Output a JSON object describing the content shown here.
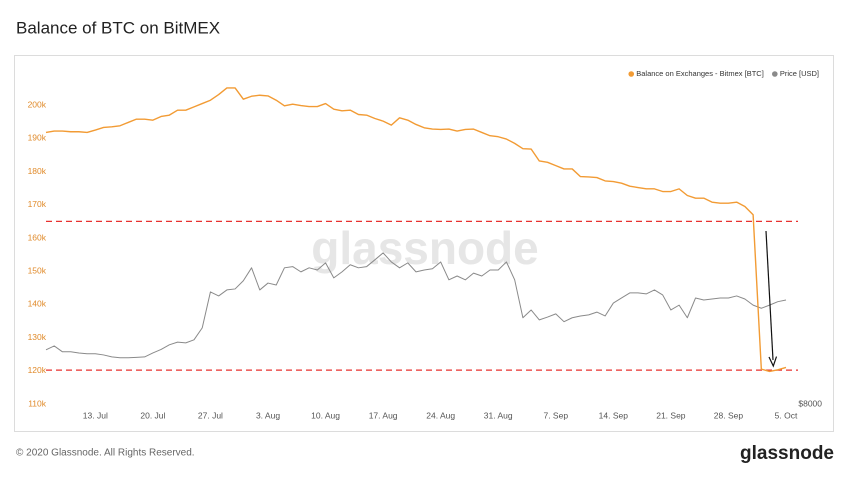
{
  "chart_data": {
    "type": "line",
    "title": "Balance of BTC on BitMEX",
    "watermark": "glassnode",
    "categories": [
      null,
      null,
      null,
      null,
      null,
      null,
      "13. Jul",
      null,
      null,
      null,
      null,
      null,
      null,
      "20. Jul",
      null,
      null,
      null,
      null,
      null,
      null,
      "27. Jul",
      null,
      null,
      null,
      null,
      null,
      null,
      "3. Aug",
      null,
      null,
      null,
      null,
      null,
      null,
      "10. Aug",
      null,
      null,
      null,
      null,
      null,
      null,
      "17. Aug",
      null,
      null,
      null,
      null,
      null,
      null,
      "24. Aug",
      null,
      null,
      null,
      null,
      null,
      null,
      "31. Aug",
      null,
      null,
      null,
      null,
      null,
      null,
      "7. Sep",
      null,
      null,
      null,
      null,
      null,
      null,
      "14. Sep",
      null,
      null,
      null,
      null,
      null,
      null,
      "21. Sep",
      null,
      null,
      null,
      null,
      null,
      null,
      "28. Sep",
      null,
      null,
      null,
      null,
      null,
      null,
      "5. Oct"
    ],
    "series": [
      {
        "name": "Balance on Exchanges - Bitmex [BTC]",
        "color": "#f29b34",
        "axis": "y",
        "values": [
          191800,
          192200,
          192200,
          192000,
          192000,
          191800,
          192500,
          193300,
          193500,
          193800,
          194800,
          195800,
          195800,
          195500,
          196600,
          197000,
          198500,
          198500,
          199500,
          200500,
          201500,
          203200,
          205200,
          205200,
          201800,
          202700,
          203000,
          202800,
          201500,
          199800,
          200300,
          199900,
          199600,
          199600,
          200500,
          198800,
          198300,
          198500,
          197200,
          197000,
          196000,
          195200,
          194000,
          196200,
          195500,
          194200,
          193200,
          192800,
          192700,
          192800,
          192200,
          192700,
          192800,
          191800,
          190800,
          190500,
          189800,
          188500,
          186900,
          186800,
          183200,
          182800,
          181800,
          180800,
          180800,
          178500,
          178400,
          178200,
          177200,
          177000,
          176500,
          175600,
          175200,
          174800,
          174800,
          174000,
          174000,
          174800,
          172800,
          172000,
          172000,
          170800,
          170500,
          170500,
          170800,
          169500,
          167000,
          120500,
          119800,
          120300,
          121000
        ]
      },
      {
        "name": "Price [USD]",
        "color": "#8a8a8a",
        "axis": "y2",
        "values": [
          9290,
          9390,
          9240,
          9240,
          9210,
          9190,
          9190,
          9160,
          9110,
          9090,
          9090,
          9100,
          9110,
          9210,
          9300,
          9420,
          9490,
          9470,
          9550,
          9870,
          10900,
          10780,
          10960,
          10990,
          11240,
          11650,
          10960,
          11170,
          11110,
          11650,
          11690,
          11520,
          11650,
          11580,
          11810,
          11330,
          11520,
          11750,
          11650,
          11690,
          11910,
          12140,
          11840,
          11650,
          11810,
          11520,
          11580,
          11620,
          11840,
          11270,
          11390,
          11270,
          11480,
          11390,
          11580,
          11580,
          11840,
          11270,
          10150,
          10370,
          10090,
          10170,
          10260,
          10040,
          10150,
          10200,
          10230,
          10310,
          10200,
          10570,
          10720,
          10870,
          10870,
          10840,
          10960,
          10810,
          10370,
          10510,
          10150,
          10720,
          10660,
          10690,
          10720,
          10720,
          10780,
          10690,
          10510,
          10420,
          10510,
          10610,
          10660
        ]
      }
    ],
    "ylim": [
      110000,
      210000
    ],
    "yticks": [
      {
        "value": 110000,
        "label": "110k"
      },
      {
        "value": 120000,
        "label": "120k"
      },
      {
        "value": 130000,
        "label": "130k"
      },
      {
        "value": 140000,
        "label": "140k"
      },
      {
        "value": 150000,
        "label": "150k"
      },
      {
        "value": 160000,
        "label": "160k"
      },
      {
        "value": 170000,
        "label": "170k"
      },
      {
        "value": 180000,
        "label": "180k"
      },
      {
        "value": 190000,
        "label": "190k"
      },
      {
        "value": 200000,
        "label": "200k"
      }
    ],
    "y2lim": [
      8000,
      20000
    ],
    "y2ticks": [
      {
        "value": 8000,
        "label": "$8000"
      }
    ],
    "y2_scale": "log",
    "ytick_color": "#e08a2a",
    "grid": false,
    "legend": "top-right",
    "reference_lines": [
      {
        "value": 165000,
        "color": "#e8312f"
      },
      {
        "value": 120200,
        "color": "#e8312f"
      }
    ]
  },
  "footer": {
    "copyright": "© 2020 Glassnode. All Rights Reserved.",
    "logo": "glassnode"
  }
}
